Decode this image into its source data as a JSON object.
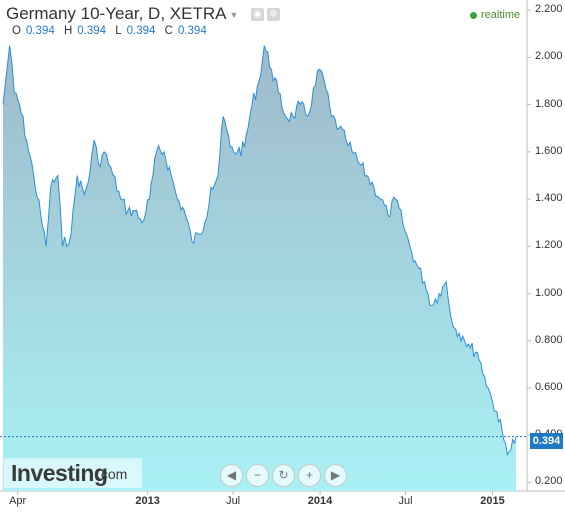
{
  "header": {
    "title": "Germany 10-Year, D, XETRA",
    "realtime_label": "realtime",
    "ohlc": [
      {
        "key": "O",
        "value": "0.394"
      },
      {
        "key": "H",
        "value": "0.394"
      },
      {
        "key": "L",
        "value": "0.394"
      },
      {
        "key": "C",
        "value": "0.394"
      }
    ]
  },
  "logo": {
    "brand": "Investing",
    "domain": ".com"
  },
  "last_price_label": "0.394",
  "colors": {
    "line": "#2b8fd8",
    "fill_top": "#9fb9c9",
    "fill_bottom": "#a9f1f6",
    "last_box": "#1f78c4",
    "realtime_dot": "#3aa33a"
  },
  "nav_icons": [
    "chevron-left-icon",
    "zoom-out-icon",
    "reset-icon",
    "zoom-in-icon",
    "chevron-right-icon"
  ],
  "chart_data": {
    "type": "area",
    "title": "Germany 10-Year, D, XETRA",
    "xlabel": "",
    "ylabel": "",
    "ylim": [
      0.164,
      2.243
    ],
    "y_ticks": [
      "2.200",
      "2.000",
      "1.800",
      "1.600",
      "1.400",
      "1.200",
      "1.000",
      "0.800",
      "0.600",
      "0.400",
      "0.200"
    ],
    "x_ticks": [
      {
        "label": "Apr",
        "bold": false
      },
      {
        "label": "2013",
        "bold": true
      },
      {
        "label": "Jul",
        "bold": false
      },
      {
        "label": "2014",
        "bold": true
      },
      {
        "label": "Jul",
        "bold": false
      },
      {
        "label": "2015",
        "bold": true
      }
    ],
    "last_value": 0.394,
    "series": [
      {
        "x": [
          "2012-03-01",
          "2012-03-15",
          "2012-03-25",
          "2012-04-05",
          "2012-04-20",
          "2012-05-05",
          "2012-05-20",
          "2012-05-31",
          "2012-06-10",
          "2012-06-25",
          "2012-07-05",
          "2012-07-23",
          "2012-08-05",
          "2012-08-20",
          "2012-08-31",
          "2012-09-10",
          "2012-09-19",
          "2012-10-01",
          "2012-10-20",
          "2012-11-05",
          "2012-11-20",
          "2012-12-05",
          "2012-12-20",
          "2013-01-05",
          "2013-01-20",
          "2013-02-05",
          "2013-02-20",
          "2013-03-05",
          "2013-03-20",
          "2013-04-05",
          "2013-04-20",
          "2013-05-02",
          "2013-05-15",
          "2013-05-30",
          "2013-06-10",
          "2013-06-25",
          "2013-07-10",
          "2013-07-25",
          "2013-08-10",
          "2013-08-25",
          "2013-09-05",
          "2013-09-20",
          "2013-10-05",
          "2013-10-20",
          "2013-11-05",
          "2013-11-20",
          "2013-12-05",
          "2013-12-31",
          "2014-01-10",
          "2014-01-25",
          "2014-02-10",
          "2014-02-25",
          "2014-03-10",
          "2014-03-25",
          "2014-04-10",
          "2014-04-25",
          "2014-05-10",
          "2014-05-25",
          "2014-06-10",
          "2014-06-25",
          "2014-07-10",
          "2014-07-25",
          "2014-08-10",
          "2014-08-25",
          "2014-09-10",
          "2014-09-25",
          "2014-10-05",
          "2014-10-15",
          "2014-10-30",
          "2014-11-15",
          "2014-11-30",
          "2014-12-15",
          "2014-12-31",
          "2015-01-10",
          "2015-01-25",
          "2015-02-05",
          "2015-02-20"
        ],
        "values": [
          1.8,
          2.05,
          1.85,
          1.8,
          1.65,
          1.5,
          1.33,
          1.2,
          1.45,
          1.5,
          1.2,
          1.25,
          1.5,
          1.42,
          1.5,
          1.65,
          1.55,
          1.6,
          1.5,
          1.4,
          1.35,
          1.35,
          1.3,
          1.4,
          1.6,
          1.6,
          1.5,
          1.4,
          1.35,
          1.22,
          1.25,
          1.3,
          1.45,
          1.5,
          1.75,
          1.62,
          1.6,
          1.62,
          1.8,
          1.9,
          2.05,
          1.95,
          1.85,
          1.75,
          1.75,
          1.8,
          1.75,
          1.95,
          1.9,
          1.75,
          1.7,
          1.65,
          1.6,
          1.55,
          1.5,
          1.45,
          1.4,
          1.33,
          1.4,
          1.3,
          1.2,
          1.12,
          1.05,
          0.95,
          1.0,
          1.05,
          0.9,
          0.85,
          0.82,
          0.77,
          0.75,
          0.65,
          0.55,
          0.5,
          0.38,
          0.33,
          0.394
        ]
      }
    ]
  }
}
